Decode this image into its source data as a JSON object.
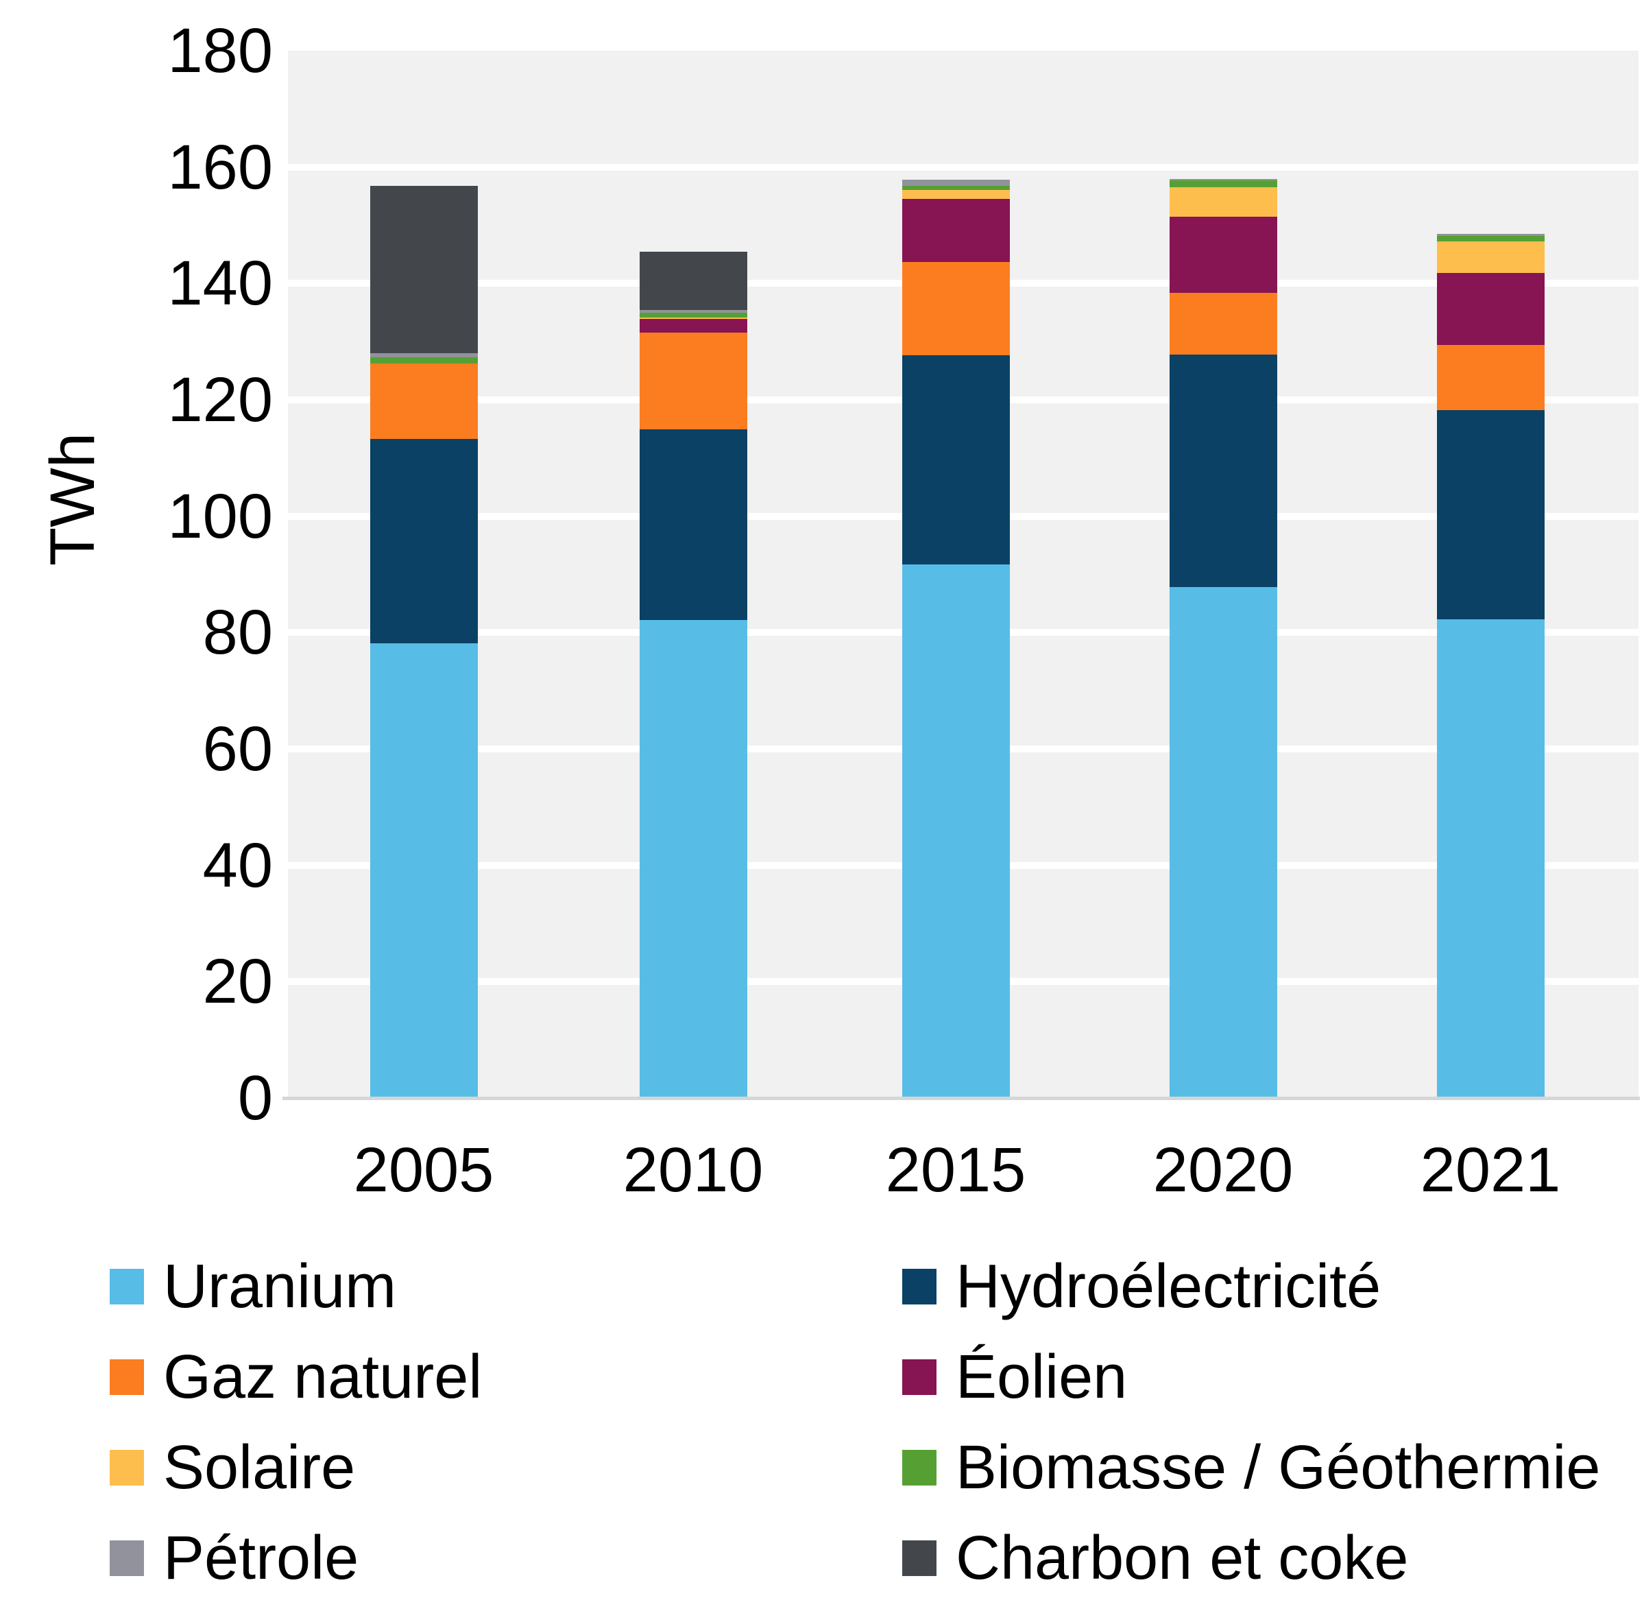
{
  "chart_data": {
    "type": "bar",
    "stacked": true,
    "title": "",
    "xlabel": "",
    "ylabel": "TWh",
    "ylim": [
      0,
      180
    ],
    "yticks": [
      0,
      20,
      40,
      60,
      80,
      100,
      120,
      140,
      160,
      180
    ],
    "grid": true,
    "legend_position": "bottom",
    "plot_bg_color": "#F1F1F1",
    "gridline_color": "#FFFFFF",
    "axis_line_color": "#D6D6D6",
    "categories": [
      "2005",
      "2010",
      "2015",
      "2020",
      "2021"
    ],
    "series": [
      {
        "name": "Uranium",
        "color": "#57BDE6",
        "values": [
          78.1,
          82.2,
          91.7,
          87.8,
          82.3
        ]
      },
      {
        "name": "Hydroélectricité",
        "color": "#0B4165",
        "values": [
          35.2,
          32.7,
          36.0,
          40.0,
          35.9
        ]
      },
      {
        "name": "Gaz naturel",
        "color": "#FB7D20",
        "values": [
          12.9,
          16.7,
          16.0,
          10.6,
          11.2
        ]
      },
      {
        "name": "Éolien",
        "color": "#871453",
        "values": [
          0,
          2.3,
          10.8,
          13.1,
          12.4
        ]
      },
      {
        "name": "Solaire",
        "color": "#FDBE4D",
        "values": [
          0,
          0.2,
          1.6,
          5.1,
          5.4
        ]
      },
      {
        "name": "Biomasse / Géothermie",
        "color": "#56A033",
        "values": [
          1.1,
          0.9,
          0.7,
          1.1,
          1.0
        ]
      },
      {
        "name": "Pétrole",
        "color": "#92929C",
        "values": [
          0.7,
          0.5,
          1.0,
          0.3,
          0.3
        ]
      },
      {
        "name": "Charbon et coke",
        "color": "#43474C",
        "values": [
          28.8,
          10.0,
          0,
          0,
          0
        ]
      }
    ],
    "stack_totals": [
      156.8,
      145.5,
      157.8,
      158.0,
      148.5
    ],
    "legend_columns": [
      [
        0,
        2,
        4,
        6
      ],
      [
        1,
        3,
        5,
        7
      ]
    ]
  }
}
